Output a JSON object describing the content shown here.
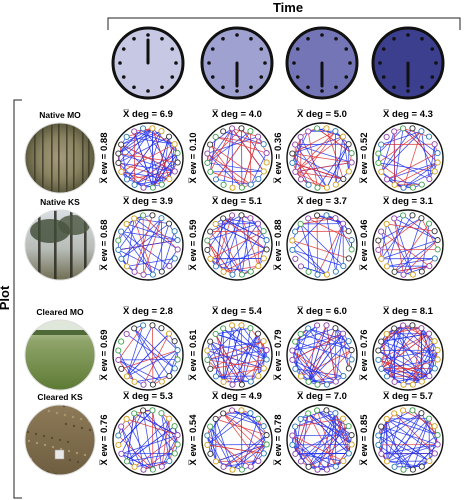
{
  "figure": {
    "time_label": "Time",
    "plot_label": "Plot",
    "stat_labels": {
      "degree": "X̅ deg = ",
      "edge_weight": "X̅ ew = "
    },
    "clock_colors": [
      "#c6c8e4",
      "#9fa1d0",
      "#7375b6",
      "#3c3e8e"
    ],
    "clock_hand_positions": [
      "12:00",
      "6:00",
      "6:00",
      "6:00"
    ],
    "network_colors": {
      "edge_primary": "#2233ee",
      "edge_secondary": "#e03333",
      "node_palette": [
        "#333333",
        "#3fa34d",
        "#8e44ad",
        "#d4a017",
        "#2c7bb6"
      ]
    },
    "plots": [
      {
        "name": "Native MO",
        "photo": "eucalyptus-forest-photo",
        "cells": [
          {
            "deg": "6.9",
            "ew": "0.88"
          },
          {
            "deg": "4.0",
            "ew": "0.10"
          },
          {
            "deg": "5.0",
            "ew": "0.36"
          },
          {
            "deg": "4.3",
            "ew": "0.52"
          }
        ]
      },
      {
        "name": "Native KS",
        "photo": "woodland-photo",
        "cells": [
          {
            "deg": "3.9",
            "ew": "0.68"
          },
          {
            "deg": "5.1",
            "ew": "0.59"
          },
          {
            "deg": "3.7",
            "ew": "0.88"
          },
          {
            "deg": "3.1",
            "ew": "0.46"
          }
        ]
      },
      {
        "name": "Cleared MO",
        "photo": "grass-field-photo",
        "cells": [
          {
            "deg": "2.8",
            "ew": "0.69"
          },
          {
            "deg": "5.4",
            "ew": "0.61"
          },
          {
            "deg": "6.0",
            "ew": "0.79"
          },
          {
            "deg": "8.1",
            "ew": "0.76"
          }
        ]
      },
      {
        "name": "Cleared KS",
        "photo": "bare-ground-photo",
        "cells": [
          {
            "deg": "5.3",
            "ew": "0.76"
          },
          {
            "deg": "4.9",
            "ew": "0.54"
          },
          {
            "deg": "7.0",
            "ew": "0.78"
          },
          {
            "deg": "5.7",
            "ew": "0.85"
          }
        ]
      }
    ]
  }
}
